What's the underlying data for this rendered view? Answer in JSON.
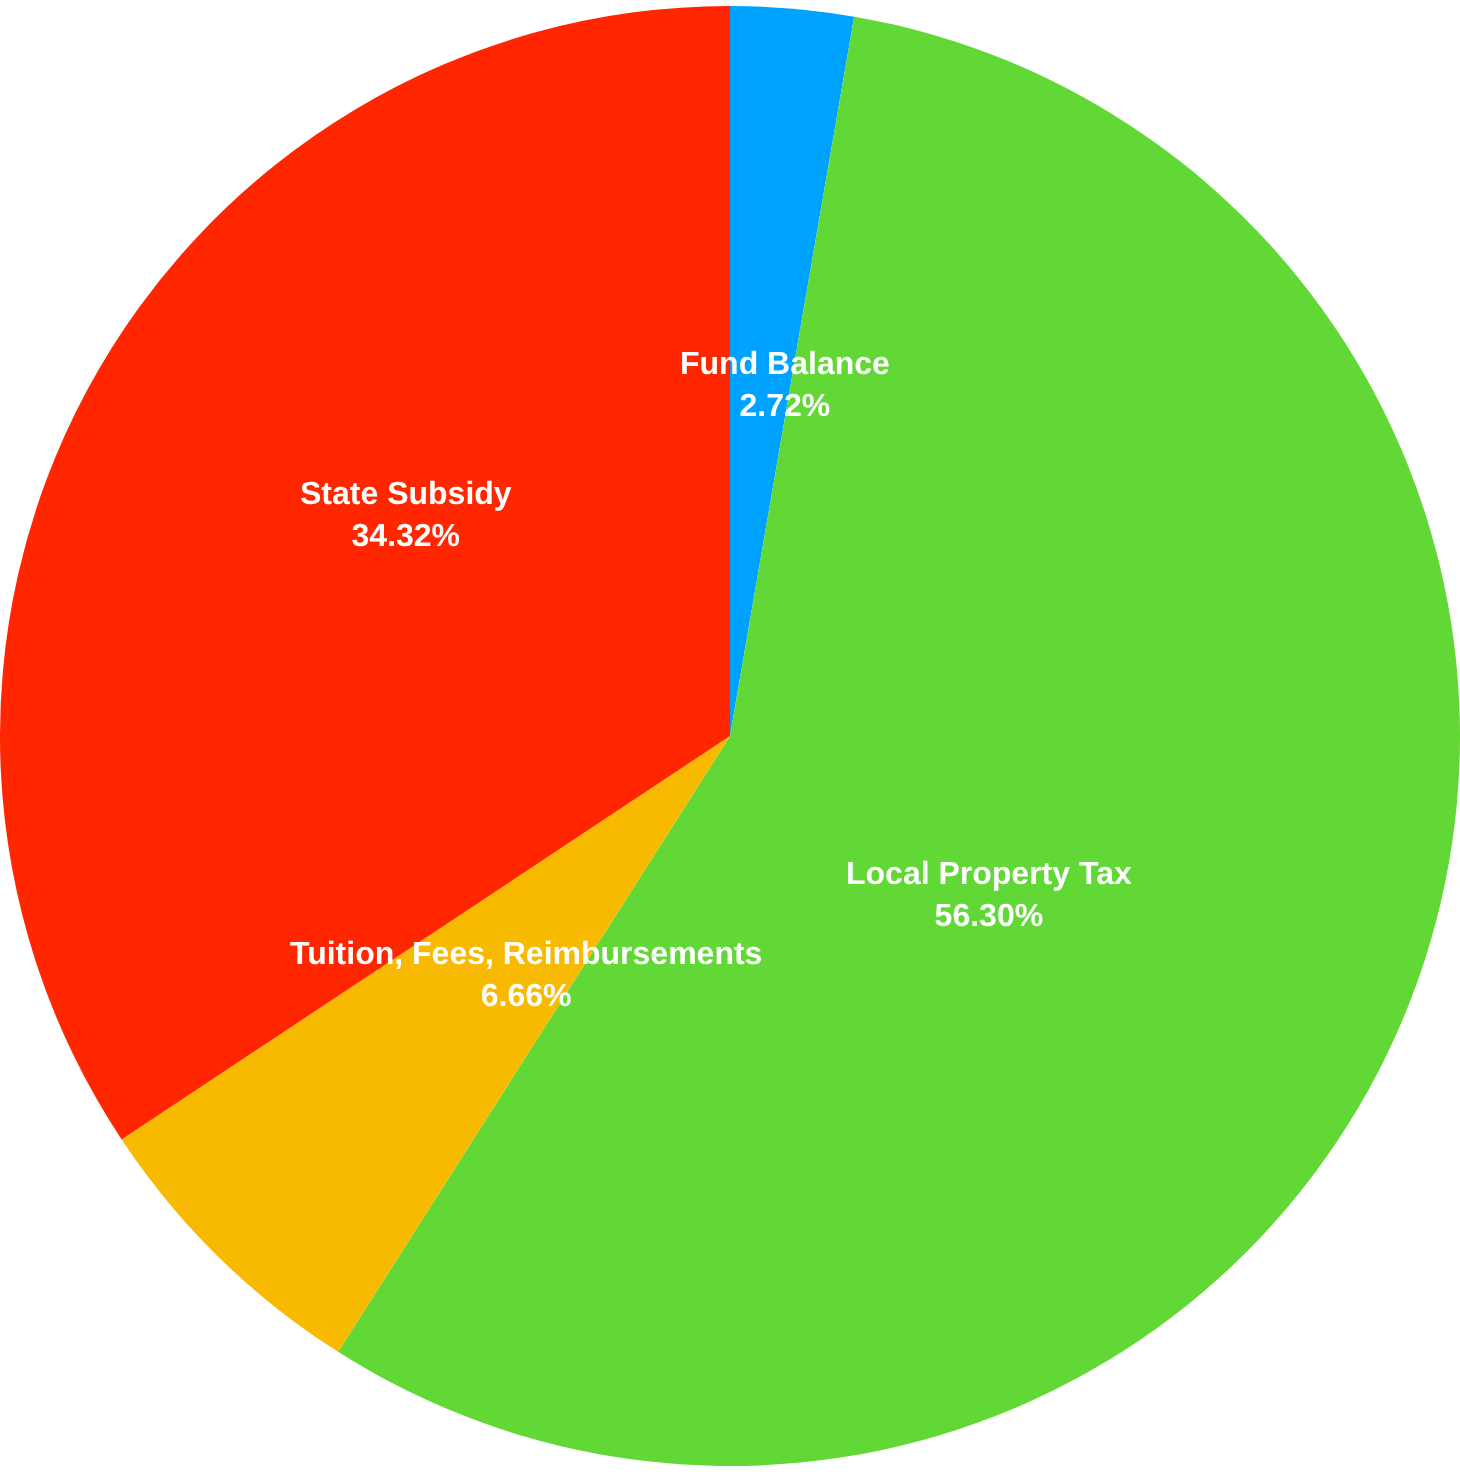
{
  "chart_data": {
    "type": "pie",
    "categories": [
      "Fund Balance",
      "Local Property Tax",
      "Tuition, Fees, Reimbursements",
      "State Subsidy"
    ],
    "values": [
      2.72,
      56.3,
      6.66,
      34.32
    ],
    "value_labels": [
      "2.72%",
      "56.30%",
      "6.66%",
      "34.32%"
    ],
    "colors": [
      "#00a2ff",
      "#61d836",
      "#f8ba00",
      "#ff2600"
    ],
    "legend": false
  }
}
